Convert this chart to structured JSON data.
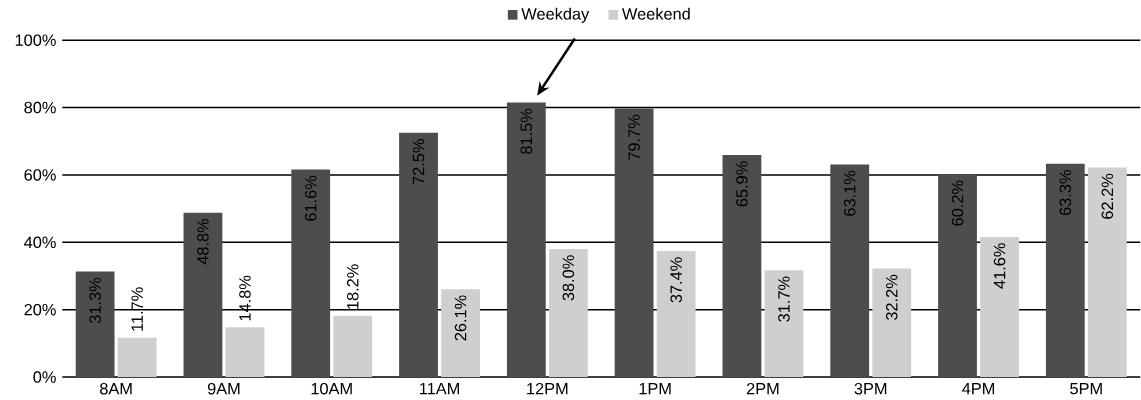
{
  "chart_data": {
    "type": "bar",
    "categories": [
      "8AM",
      "9AM",
      "10AM",
      "11AM",
      "12PM",
      "1PM",
      "2PM",
      "3PM",
      "4PM",
      "5PM"
    ],
    "series": [
      {
        "name": "Weekday",
        "color": "#4d4d4d",
        "values": [
          31.3,
          48.8,
          61.6,
          72.5,
          81.5,
          79.7,
          65.9,
          63.1,
          60.2,
          63.3
        ],
        "value_labels": [
          "31.3%",
          "48.8%",
          "61.6%",
          "72.5%",
          "81.5%",
          "79.7%",
          "65.9%",
          "63.1%",
          "60.2%",
          "63.3%"
        ]
      },
      {
        "name": "Weekend",
        "color": "#cfcfcf",
        "values": [
          11.7,
          14.8,
          18.2,
          26.1,
          38.0,
          37.4,
          31.7,
          32.2,
          41.6,
          62.2
        ],
        "value_labels": [
          "11.7%",
          "14.8%",
          "18.2%",
          "26.1%",
          "38.0%",
          "37.4%",
          "31.7%",
          "32.2%",
          "41.6%",
          "62.2%"
        ]
      }
    ],
    "ylim": [
      0,
      100
    ],
    "yticks": [
      {
        "value": 0,
        "label": "0%"
      },
      {
        "value": 20,
        "label": "20%"
      },
      {
        "value": 40,
        "label": "40%"
      },
      {
        "value": 60,
        "label": "60%"
      },
      {
        "value": 80,
        "label": "80%"
      },
      {
        "value": 100,
        "label": "100%"
      }
    ],
    "grid": "y",
    "legend": "top"
  }
}
